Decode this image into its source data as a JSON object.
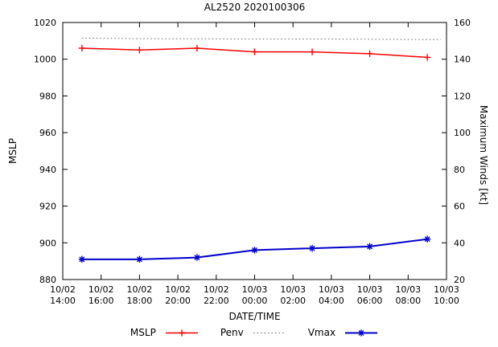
{
  "window": {
    "title": "AL2520 2020100306"
  },
  "chart_data": {
    "type": "line",
    "title": "AL2520 2020100306",
    "xlabel": "DATE/TIME",
    "grid": false,
    "legend_position": "bottom-center",
    "x_axis": {
      "range_hours": [
        0,
        20
      ],
      "tick_step_hours": 2,
      "tick_labels": [
        {
          "date": "10/02",
          "time": "14:00"
        },
        {
          "date": "10/02",
          "time": "16:00"
        },
        {
          "date": "10/02",
          "time": "18:00"
        },
        {
          "date": "10/02",
          "time": "20:00"
        },
        {
          "date": "10/02",
          "time": "22:00"
        },
        {
          "date": "10/03",
          "time": "00:00"
        },
        {
          "date": "10/03",
          "time": "02:00"
        },
        {
          "date": "10/03",
          "time": "04:00"
        },
        {
          "date": "10/03",
          "time": "06:00"
        },
        {
          "date": "10/03",
          "time": "08:00"
        },
        {
          "date": "10/03",
          "time": "10:00"
        }
      ]
    },
    "y_axis_left": {
      "label": "MSLP",
      "range": [
        880,
        1020
      ],
      "ticks": [
        880,
        900,
        920,
        940,
        960,
        980,
        1000,
        1020
      ]
    },
    "y_axis_right": {
      "label": "Maximum Winds [kt]",
      "range": [
        20,
        160
      ],
      "ticks": [
        20,
        40,
        60,
        80,
        100,
        120,
        140,
        160
      ]
    },
    "x_hours": [
      1,
      4,
      7,
      10,
      13,
      16,
      19
    ],
    "x_point_times": [
      "10/02 15:00",
      "10/02 18:00",
      "10/02 21:00",
      "10/03 00:00",
      "10/03 03:00",
      "10/03 06:00",
      "10/03 09:00"
    ],
    "series": [
      {
        "name": "MSLP",
        "axis": "left",
        "color": "#ff0000",
        "style": "solid",
        "marker": "plus",
        "width": 1.5,
        "values": [
          1006,
          1005,
          1006,
          1004,
          1004,
          1003,
          1001
        ]
      },
      {
        "name": "Penv",
        "axis": "left",
        "color": "#666666",
        "style": "dotted",
        "marker": "none",
        "width": 1,
        "x_hours": [
          1,
          4,
          7,
          10,
          13,
          16,
          19,
          19.7
        ],
        "values": [
          1011.5,
          1011.2,
          1011.1,
          1011.0,
          1011.0,
          1010.9,
          1010.7,
          1010.7
        ]
      },
      {
        "name": "Vmax",
        "axis": "right",
        "color": "#0000cc",
        "style": "solid",
        "marker": "asterisk",
        "width": 2,
        "values": [
          31,
          31,
          32,
          36,
          37,
          38,
          42
        ]
      }
    ]
  }
}
